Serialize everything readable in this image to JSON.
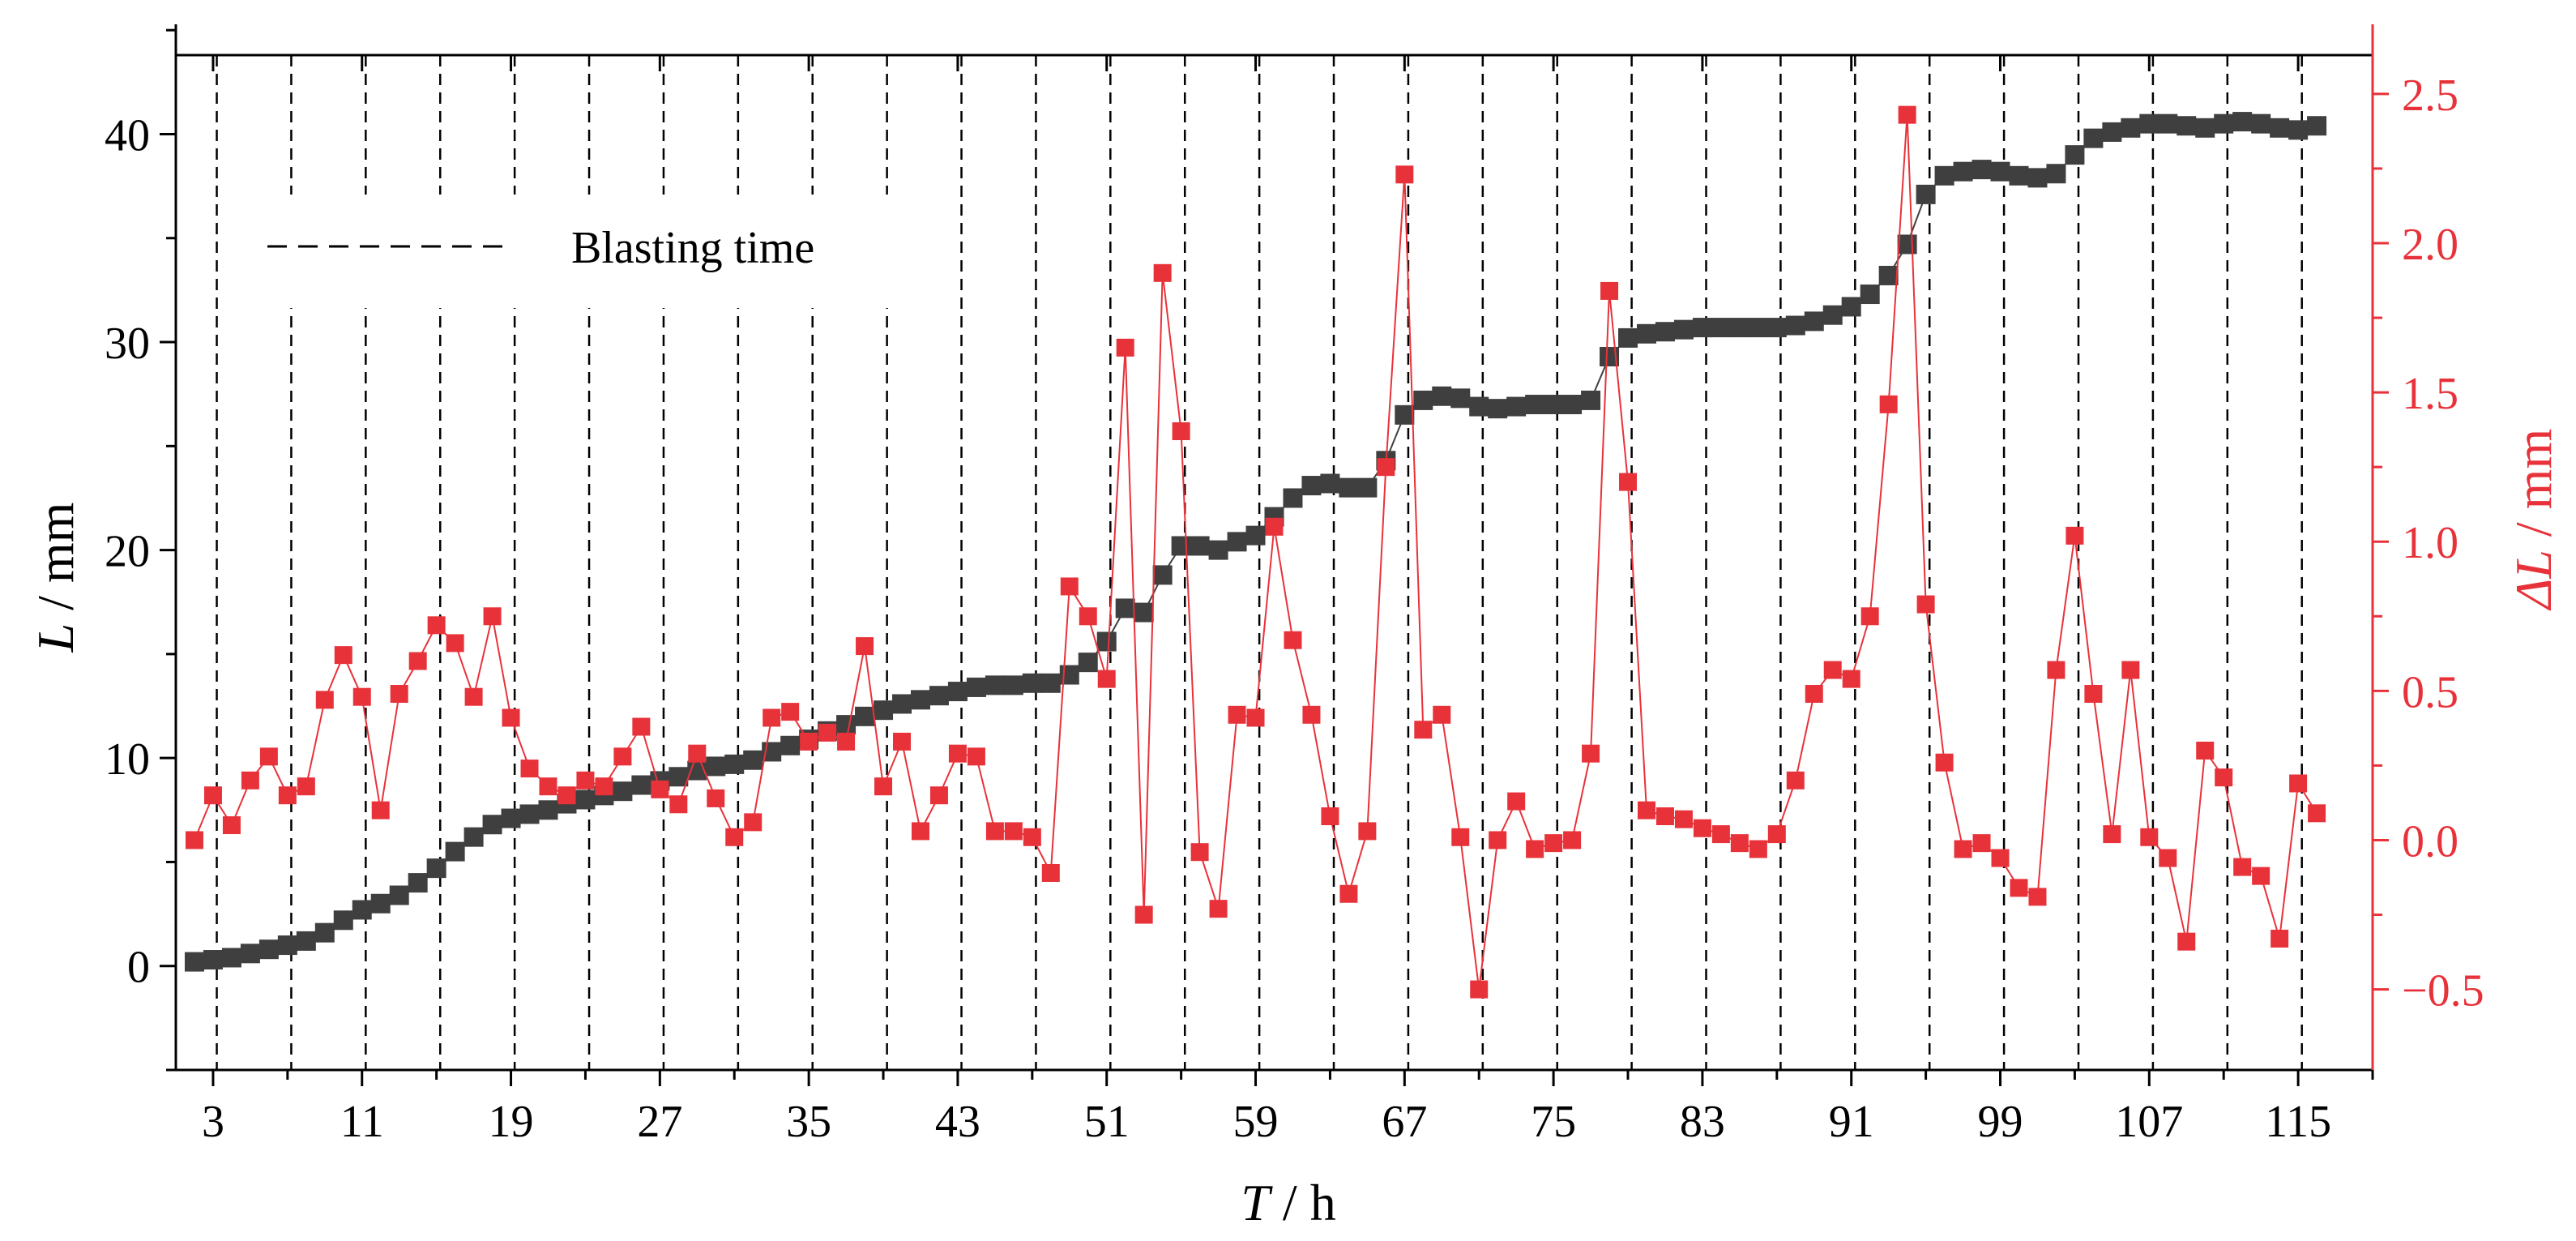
{
  "chart_data": {
    "type": "line",
    "title": "",
    "xlabel": {
      "italic": "T",
      "rest": " / h"
    },
    "ylabel_left": {
      "italic": "L",
      "rest": " / mm"
    },
    "ylabel_right": {
      "italic": "ΔL",
      "rest": " / mm"
    },
    "xlim": [
      1,
      119
    ],
    "ylim_left": [
      -5,
      43.8
    ],
    "ylim_right": [
      -0.77,
      2.63
    ],
    "x_ticks": [
      3,
      11,
      19,
      27,
      35,
      43,
      51,
      59,
      67,
      75,
      83,
      91,
      99,
      107,
      115
    ],
    "y_ticks_left": [
      0,
      10,
      20,
      30,
      40
    ],
    "y_ticks_right": [
      "-0.5",
      "0.0",
      "0.5",
      "1.0",
      "1.5",
      "2.0",
      "2.5"
    ],
    "grid": false,
    "legend": {
      "placement": "top-left",
      "entries": [
        "Blasting time"
      ]
    },
    "colors": {
      "L": "#3f3f3f",
      "dL": "#e8323a",
      "right_axis": "#e8323a",
      "blast_line": "#000000"
    },
    "blasting_times": [
      3.2,
      7.2,
      11.2,
      15.2,
      19.2,
      23.2,
      27.2,
      31.2,
      35.2,
      39.2,
      43.2,
      47.2,
      51.2,
      55.2,
      59.2,
      63.2,
      67.2,
      71.2,
      75.2,
      79.2,
      83.2,
      87.2,
      91.2,
      95.2,
      99.2,
      103.2,
      107.2,
      111.2,
      115.2
    ],
    "series": [
      {
        "name": "L",
        "axis": "left",
        "x": [
          2,
          3,
          4,
          5,
          6,
          7,
          8,
          9,
          10,
          11,
          12,
          13,
          14,
          15,
          16,
          17,
          18,
          19,
          20,
          21,
          22,
          23,
          24,
          25,
          26,
          27,
          28,
          29,
          30,
          31,
          32,
          33,
          34,
          35,
          36,
          37,
          38,
          39,
          40,
          41,
          42,
          43,
          44,
          45,
          46,
          47,
          48,
          49,
          50,
          51,
          52,
          53,
          54,
          55,
          56,
          57,
          58,
          59,
          60,
          61,
          62,
          63,
          64,
          65,
          66,
          67,
          68,
          69,
          70,
          71,
          72,
          73,
          74,
          75,
          76,
          77,
          78,
          79,
          80,
          81,
          82,
          83,
          84,
          85,
          86,
          87,
          88,
          89,
          90,
          91,
          92,
          93,
          94,
          95,
          96,
          97,
          98,
          99,
          100,
          101,
          102,
          103,
          104,
          105,
          106,
          107,
          108,
          109,
          110,
          111,
          112,
          113,
          114,
          115,
          116
        ],
        "values": [
          0.2,
          0.3,
          0.4,
          0.6,
          0.8,
          1.0,
          1.2,
          1.6,
          2.2,
          2.7,
          3.0,
          3.4,
          4.0,
          4.7,
          5.5,
          6.2,
          6.8,
          7.1,
          7.3,
          7.5,
          7.8,
          8.0,
          8.2,
          8.4,
          8.7,
          8.9,
          9.1,
          9.4,
          9.6,
          9.7,
          9.9,
          10.3,
          10.6,
          10.9,
          11.3,
          11.6,
          12.0,
          12.3,
          12.6,
          12.8,
          13.0,
          13.2,
          13.4,
          13.5,
          13.5,
          13.6,
          13.6,
          14.0,
          14.6,
          15.6,
          17.2,
          17.0,
          18.8,
          20.2,
          20.2,
          20.0,
          20.4,
          20.7,
          21.6,
          22.5,
          23.1,
          23.2,
          23.0,
          23.0,
          24.3,
          26.5,
          27.2,
          27.4,
          27.3,
          26.9,
          26.8,
          26.9,
          27.0,
          27.0,
          27.0,
          27.2,
          29.3,
          30.2,
          30.4,
          30.5,
          30.6,
          30.7,
          30.7,
          30.7,
          30.7,
          30.7,
          30.8,
          31.0,
          31.3,
          31.7,
          32.3,
          33.2,
          34.7,
          37.1,
          38.0,
          38.2,
          38.3,
          38.2,
          38.0,
          37.9,
          38.1,
          39.0,
          39.8,
          40.1,
          40.3,
          40.5,
          40.5,
          40.4,
          40.3,
          40.5,
          40.6,
          40.5,
          40.3,
          40.2,
          40.4
        ]
      },
      {
        "name": "ΔL",
        "axis": "right",
        "x": [
          2,
          3,
          4,
          5,
          6,
          7,
          8,
          9,
          10,
          11,
          12,
          13,
          14,
          15,
          16,
          17,
          18,
          19,
          20,
          21,
          22,
          23,
          24,
          25,
          26,
          27,
          28,
          29,
          30,
          31,
          32,
          33,
          34,
          35,
          36,
          37,
          38,
          39,
          40,
          41,
          42,
          43,
          44,
          45,
          46,
          47,
          48,
          49,
          50,
          51,
          52,
          53,
          54,
          55,
          56,
          57,
          58,
          59,
          60,
          61,
          62,
          63,
          64,
          65,
          66,
          67,
          68,
          69,
          70,
          71,
          72,
          73,
          74,
          75,
          76,
          77,
          78,
          79,
          80,
          81,
          82,
          83,
          84,
          85,
          86,
          87,
          88,
          89,
          90,
          91,
          92,
          93,
          94,
          95,
          96,
          97,
          98,
          99,
          100,
          101,
          102,
          103,
          104,
          105,
          106,
          107,
          108,
          109,
          110,
          111,
          112,
          113,
          114,
          115,
          116
        ],
        "values": [
          0.0,
          0.15,
          0.05,
          0.2,
          0.28,
          0.15,
          0.18,
          0.47,
          0.62,
          0.48,
          0.1,
          0.49,
          0.6,
          0.72,
          0.66,
          0.48,
          0.75,
          0.41,
          0.24,
          0.18,
          0.15,
          0.2,
          0.18,
          0.28,
          0.38,
          0.17,
          0.12,
          0.29,
          0.14,
          0.01,
          0.06,
          0.41,
          0.43,
          0.33,
          0.36,
          0.33,
          0.65,
          0.18,
          0.33,
          0.03,
          0.15,
          0.29,
          0.28,
          0.03,
          0.03,
          0.01,
          -0.11,
          0.85,
          0.75,
          0.54,
          1.65,
          -0.25,
          1.9,
          1.37,
          -0.04,
          -0.23,
          0.42,
          0.41,
          1.05,
          0.67,
          0.42,
          0.08,
          -0.18,
          0.03,
          1.25,
          2.23,
          0.37,
          0.42,
          0.01,
          -0.5,
          0.0,
          0.13,
          -0.03,
          -0.01,
          0.0,
          0.29,
          1.84,
          1.2,
          0.1,
          0.08,
          0.07,
          0.04,
          0.02,
          -0.01,
          -0.03,
          0.02,
          0.2,
          0.49,
          0.57,
          0.54,
          0.75,
          1.46,
          2.43,
          0.79,
          0.26,
          -0.03,
          -0.01,
          -0.06,
          -0.16,
          -0.19,
          0.57,
          1.02,
          0.49,
          0.02,
          0.57,
          0.01,
          -0.06,
          -0.34,
          0.3,
          0.21,
          -0.09,
          -0.12,
          -0.33,
          0.19,
          0.09
        ]
      }
    ]
  }
}
